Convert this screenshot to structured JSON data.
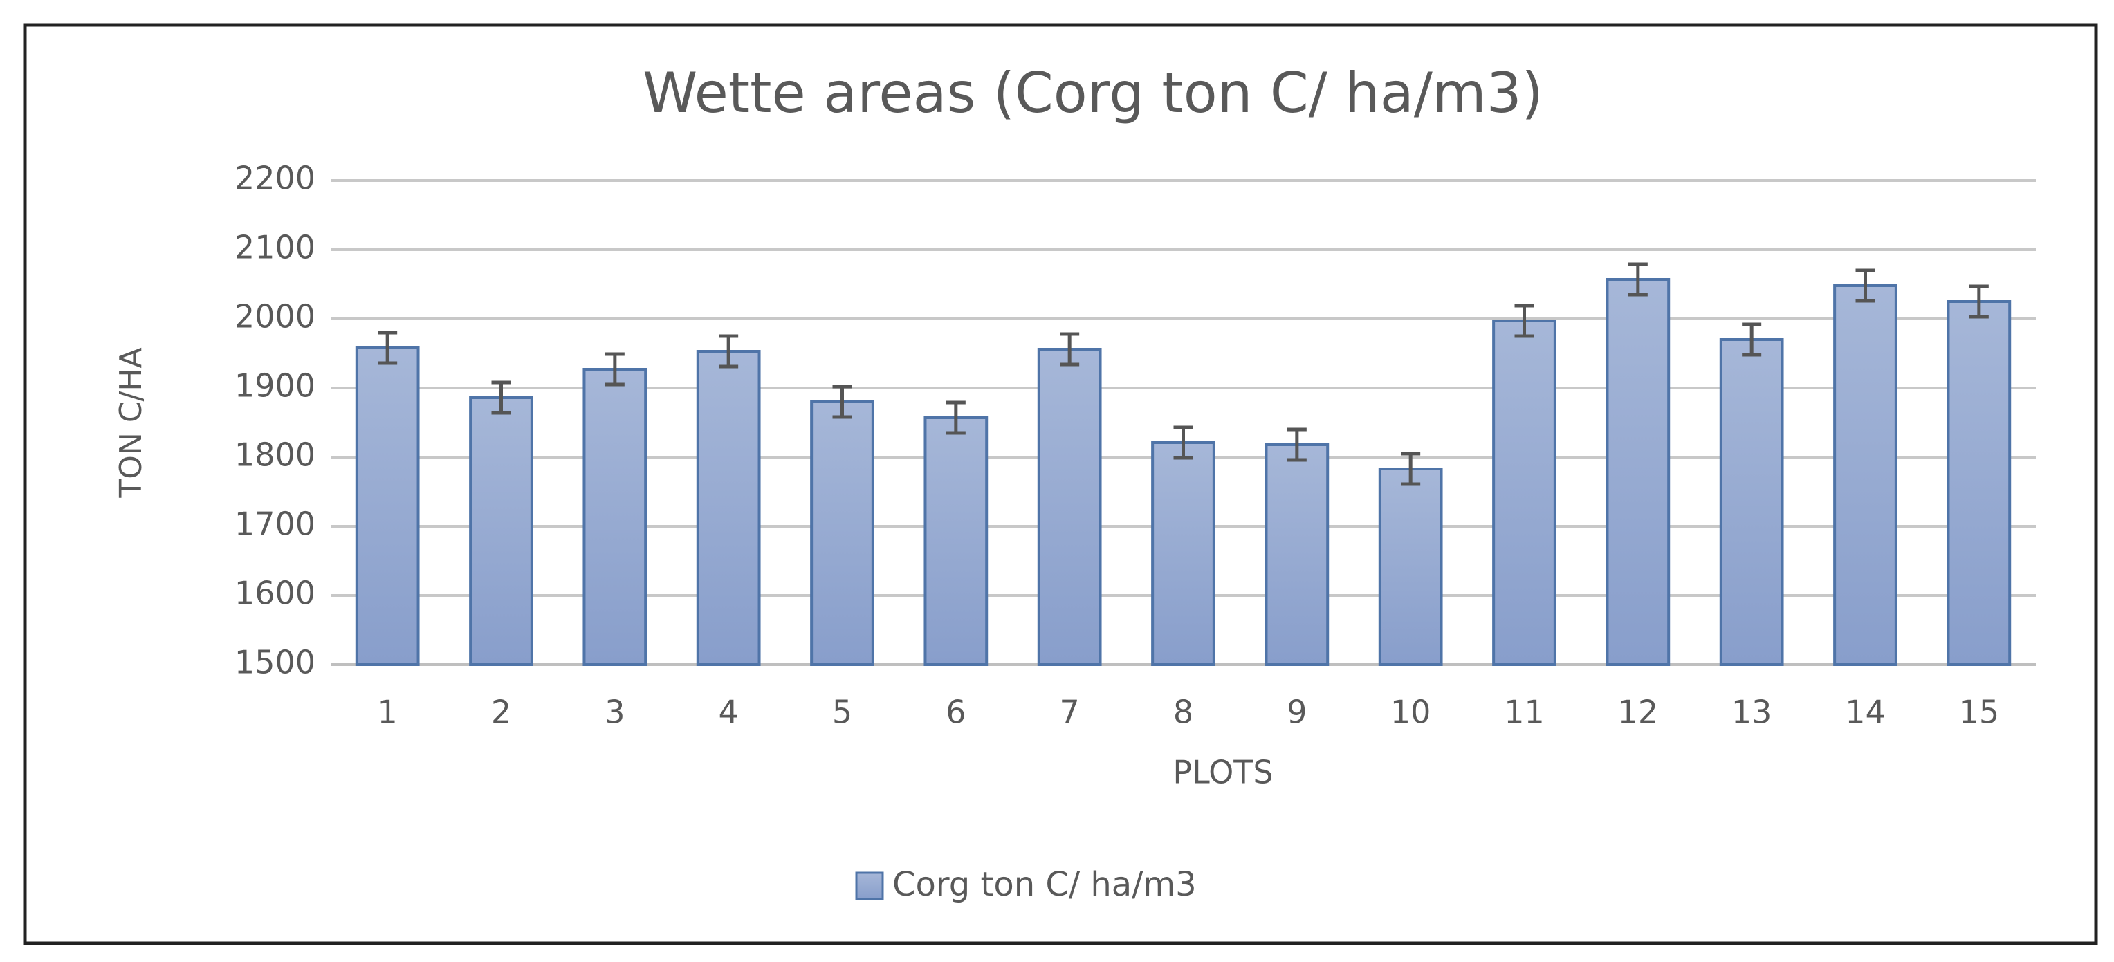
{
  "chart_data": {
    "type": "bar",
    "title": "Wette areas (Corg ton C/ ha/m3)",
    "x_label": "PLOTS",
    "y_label": "TON C/HA",
    "categories": [
      "1",
      "2",
      "3",
      "4",
      "5",
      "6",
      "7",
      "8",
      "9",
      "10",
      "11",
      "12",
      "13",
      "14",
      "15"
    ],
    "series": [
      {
        "name": "Corg ton C/ ha/m3",
        "color": "#94a8d2",
        "values": [
          1958,
          1886,
          1927,
          1953,
          1880,
          1857,
          1956,
          1821,
          1818,
          1783,
          1997,
          2057,
          1970,
          2048,
          2025
        ],
        "errors": [
          22,
          22,
          22,
          22,
          22,
          22,
          22,
          22,
          22,
          22,
          22,
          22,
          22,
          22,
          22
        ]
      }
    ],
    "ylim": [
      1500,
      2200
    ],
    "yticks": [
      1500,
      1600,
      1700,
      1800,
      1900,
      2000,
      2100,
      2200
    ],
    "grid": true,
    "legend": "bottom"
  }
}
